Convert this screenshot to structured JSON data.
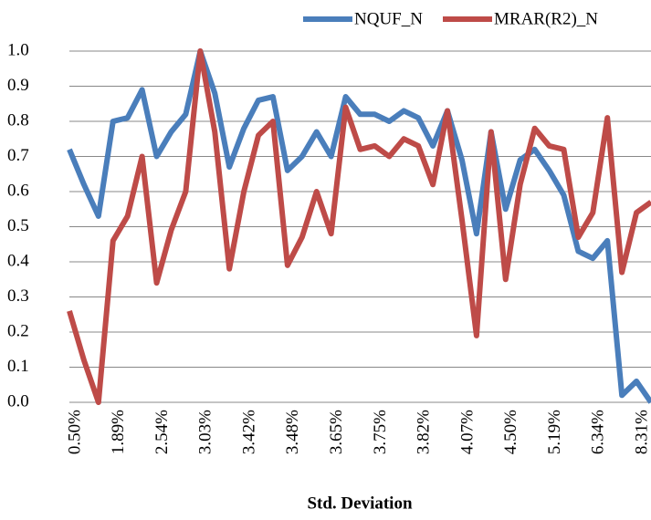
{
  "chart_data": {
    "type": "line",
    "x_label": "Std. Deviation",
    "categories": [
      "0.50%",
      null,
      null,
      "1.89%",
      null,
      null,
      "2.54%",
      null,
      null,
      "3.03%",
      null,
      null,
      "3.42%",
      null,
      null,
      "3.48%",
      null,
      null,
      "3.65%",
      null,
      null,
      "3.75%",
      null,
      null,
      "3.82%",
      null,
      null,
      "4.07%",
      null,
      null,
      "4.50%",
      null,
      null,
      "5.19%",
      null,
      null,
      "6.34%",
      null,
      null,
      "8.31%",
      null
    ],
    "series": [
      {
        "name": "NQUF_N",
        "color": "#4a7ebb",
        "values": [
          0.72,
          0.62,
          0.53,
          0.8,
          0.81,
          0.89,
          0.7,
          0.77,
          0.82,
          1.0,
          0.88,
          0.67,
          0.78,
          0.86,
          0.87,
          0.66,
          0.7,
          0.77,
          0.7,
          0.87,
          0.82,
          0.82,
          0.8,
          0.83,
          0.81,
          0.73,
          0.83,
          0.69,
          0.48,
          0.77,
          0.55,
          0.69,
          0.72,
          0.66,
          0.59,
          0.43,
          0.41,
          0.46,
          0.02,
          0.06,
          0.0
        ]
      },
      {
        "name": "MRAR(R2)_N",
        "color": "#be4b48",
        "values": [
          0.26,
          0.12,
          0.0,
          0.46,
          0.53,
          0.7,
          0.34,
          0.49,
          0.6,
          1.0,
          0.77,
          0.38,
          0.6,
          0.76,
          0.8,
          0.39,
          0.47,
          0.6,
          0.48,
          0.84,
          0.72,
          0.73,
          0.7,
          0.75,
          0.73,
          0.62,
          0.83,
          0.52,
          0.19,
          0.77,
          0.35,
          0.62,
          0.78,
          0.73,
          0.72,
          0.47,
          0.54,
          0.81,
          0.37,
          0.54,
          0.57
        ]
      }
    ],
    "ylim": [
      0,
      1
    ],
    "yticks": [
      {
        "value": 0,
        "label": "0.0"
      },
      0.1,
      0.2,
      0.3,
      0.4,
      0.5,
      0.6,
      0.7,
      0.8,
      0.9,
      {
        "value": 1,
        "label": "1.0"
      }
    ],
    "grid": true,
    "legend": "top"
  }
}
